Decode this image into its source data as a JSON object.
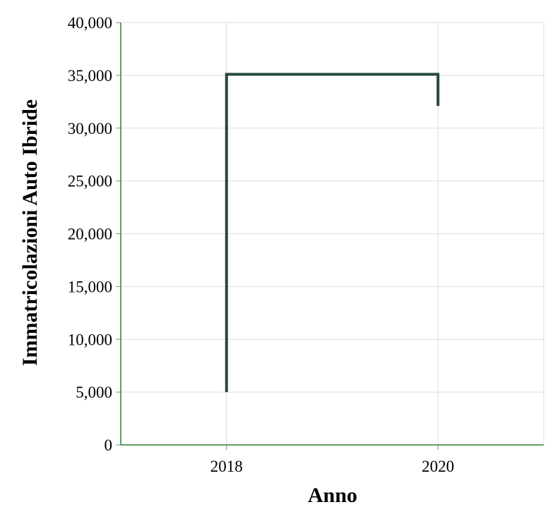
{
  "chart_data": {
    "type": "line",
    "title": "",
    "xlabel": "Anno",
    "ylabel": "Immatricolazioni Auto Ibride",
    "x_ticks": [
      "2018",
      "2020"
    ],
    "y_ticks": [
      "0",
      "5,000",
      "10,000",
      "15,000",
      "20,000",
      "25,000",
      "30,000",
      "35,000",
      "40,000"
    ],
    "xlim": [
      2017,
      2021
    ],
    "ylim": [
      0,
      40000
    ],
    "grid": true,
    "line_shape": "step",
    "series": [
      {
        "x": [
          2018,
          2018,
          2020,
          2020
        ],
        "y": [
          5000,
          35100,
          35100,
          32100
        ]
      }
    ],
    "colors": {
      "line": "#264a3d",
      "axis": "#2e7d32",
      "grid": "#dddddd",
      "tick": "#888888"
    }
  }
}
